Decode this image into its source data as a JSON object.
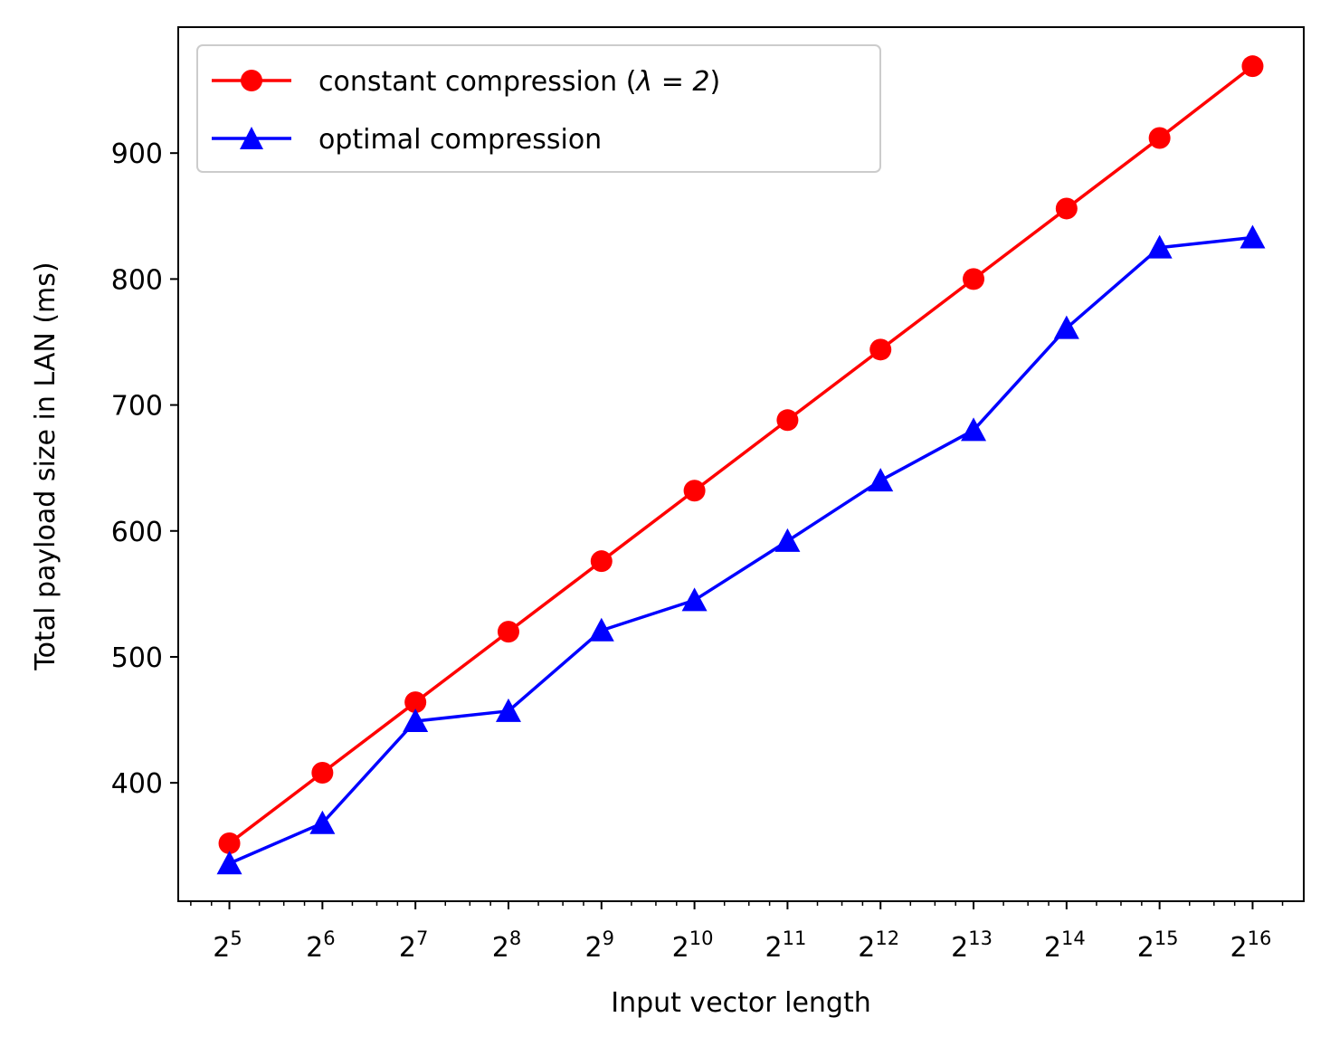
{
  "chart_data": {
    "type": "line",
    "title": "",
    "xlabel": "Input vector length",
    "ylabel": "Total payload size in LAN (ms)",
    "x_scale": "log2",
    "x_base": "2",
    "x": [
      5,
      6,
      7,
      8,
      9,
      10,
      11,
      12,
      13,
      14,
      15,
      16
    ],
    "x_tick_exponents": [
      "5",
      "6",
      "7",
      "8",
      "9",
      "10",
      "11",
      "12",
      "13",
      "14",
      "15",
      "16"
    ],
    "y_ticks": [
      "400",
      "500",
      "600",
      "700",
      "800",
      "900"
    ],
    "ylim": [
      306,
      1000
    ],
    "grid": false,
    "legend_position": "upper-left",
    "series": [
      {
        "name_prefix": "constant compression (",
        "name_math": "λ = 2",
        "name_suffix": ")",
        "color": "#ff0000",
        "marker": "circle",
        "values": [
          352,
          408,
          464,
          520,
          576,
          632,
          688,
          744,
          800,
          856,
          912,
          969
        ]
      },
      {
        "name": "optimal compression",
        "color": "#0000ff",
        "marker": "triangle",
        "values": [
          336,
          368,
          449,
          457,
          521,
          545,
          592,
          640,
          680,
          761,
          825,
          833
        ]
      }
    ]
  }
}
